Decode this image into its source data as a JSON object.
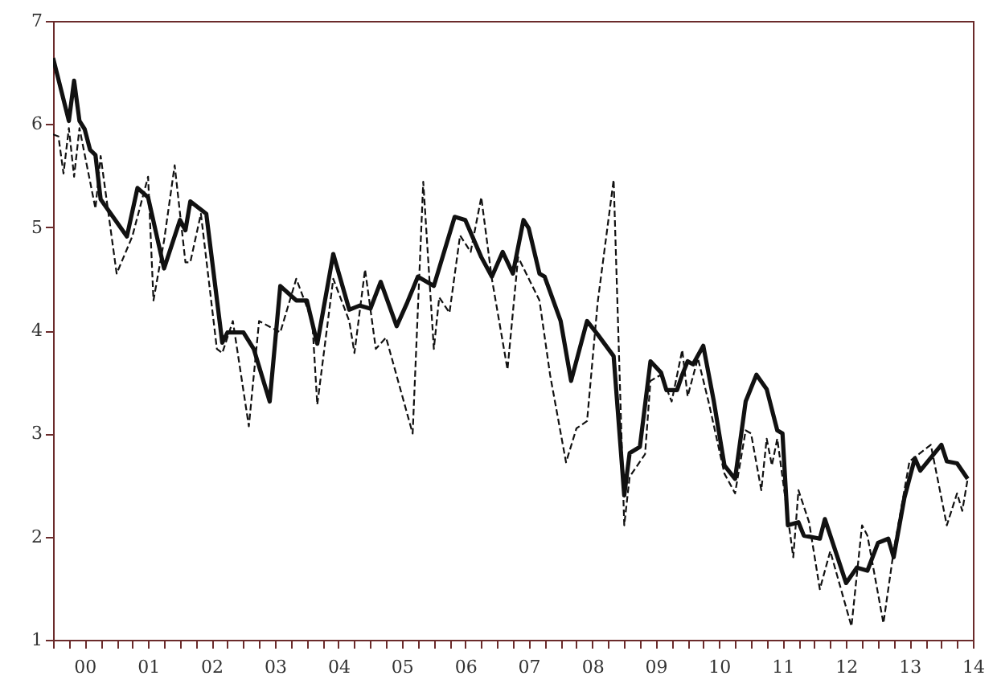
{
  "chart_data": {
    "type": "line",
    "xlim": [
      "2000-01",
      "2014-07"
    ],
    "ylim": [
      1,
      7
    ],
    "yticks": [
      1,
      2,
      3,
      4,
      5,
      6,
      7
    ],
    "marker": "none",
    "xticks": [
      {
        "value": "2000-01",
        "label": null
      },
      {
        "value": "2000-04",
        "label": null
      },
      {
        "value": "2000-07",
        "label": "00"
      },
      {
        "value": "2000-10",
        "label": null
      },
      {
        "value": "2001-01",
        "label": null
      },
      {
        "value": "2001-04",
        "label": null
      },
      {
        "value": "2001-07",
        "label": "01"
      },
      {
        "value": "2001-10",
        "label": null
      },
      {
        "value": "2002-01",
        "label": null
      },
      {
        "value": "2002-04",
        "label": null
      },
      {
        "value": "2002-07",
        "label": "02"
      },
      {
        "value": "2002-10",
        "label": null
      },
      {
        "value": "2003-01",
        "label": null
      },
      {
        "value": "2003-04",
        "label": null
      },
      {
        "value": "2003-07",
        "label": "03"
      },
      {
        "value": "2003-10",
        "label": null
      },
      {
        "value": "2004-01",
        "label": null
      },
      {
        "value": "2004-04",
        "label": null
      },
      {
        "value": "2004-07",
        "label": "04"
      },
      {
        "value": "2004-10",
        "label": null
      },
      {
        "value": "2005-01",
        "label": null
      },
      {
        "value": "2005-04",
        "label": null
      },
      {
        "value": "2005-07",
        "label": "05"
      },
      {
        "value": "2005-10",
        "label": null
      },
      {
        "value": "2006-01",
        "label": null
      },
      {
        "value": "2006-04",
        "label": null
      },
      {
        "value": "2006-07",
        "label": "06"
      },
      {
        "value": "2006-10",
        "label": null
      },
      {
        "value": "2007-01",
        "label": null
      },
      {
        "value": "2007-04",
        "label": null
      },
      {
        "value": "2007-07",
        "label": "07"
      },
      {
        "value": "2007-10",
        "label": null
      },
      {
        "value": "2008-01",
        "label": null
      },
      {
        "value": "2008-04",
        "label": null
      },
      {
        "value": "2008-07",
        "label": "08"
      },
      {
        "value": "2008-10",
        "label": null
      },
      {
        "value": "2009-01",
        "label": null
      },
      {
        "value": "2009-04",
        "label": null
      },
      {
        "value": "2009-07",
        "label": "09"
      },
      {
        "value": "2009-10",
        "label": null
      },
      {
        "value": "2010-01",
        "label": null
      },
      {
        "value": "2010-04",
        "label": null
      },
      {
        "value": "2010-07",
        "label": "10"
      },
      {
        "value": "2010-10",
        "label": null
      },
      {
        "value": "2011-01",
        "label": null
      },
      {
        "value": "2011-04",
        "label": null
      },
      {
        "value": "2011-07",
        "label": "11"
      },
      {
        "value": "2011-10",
        "label": null
      },
      {
        "value": "2012-01",
        "label": null
      },
      {
        "value": "2012-04",
        "label": null
      },
      {
        "value": "2012-07",
        "label": "12"
      },
      {
        "value": "2012-10",
        "label": null
      },
      {
        "value": "2013-01",
        "label": null
      },
      {
        "value": "2013-04",
        "label": null
      },
      {
        "value": "2013-07",
        "label": "13"
      },
      {
        "value": "2013-10",
        "label": null
      },
      {
        "value": "2014-01",
        "label": null
      },
      {
        "value": "2014-04",
        "label": null
      },
      {
        "value": "2014-07",
        "label": "14"
      }
    ],
    "series": [
      {
        "color": "#111111",
        "line_style": "solid",
        "x": [
          "2000-01",
          "2000-04",
          "2000-05",
          "2000-06",
          "2000-07",
          "2000-08",
          "2000-09",
          "2000-10",
          "2001-03",
          "2001-05",
          "2001-07",
          "2001-10",
          "2002-01",
          "2002-02",
          "2002-03",
          "2002-06",
          "2002-09",
          "2002-10",
          "2003-01",
          "2003-03",
          "2003-06",
          "2003-08",
          "2003-11",
          "2004-01",
          "2004-03",
          "2004-06",
          "2004-09",
          "2004-11",
          "2005-01",
          "2005-03",
          "2005-06",
          "2005-08",
          "2005-10",
          "2006-01",
          "2006-05",
          "2006-07",
          "2006-10",
          "2006-12",
          "2007-02",
          "2007-04",
          "2007-06",
          "2007-07",
          "2007-09",
          "2007-10",
          "2008-01",
          "2008-03",
          "2008-06",
          "2008-08",
          "2008-11",
          "2009-01",
          "2009-02",
          "2009-04",
          "2009-06",
          "2009-08",
          "2009-09",
          "2009-11",
          "2009-12",
          "2010-01",
          "2010-02",
          "2010-04",
          "2010-06",
          "2010-08",
          "2010-10",
          "2010-12",
          "2011-02",
          "2011-04",
          "2011-06",
          "2011-07",
          "2011-08",
          "2011-10",
          "2011-11",
          "2012-02",
          "2012-03",
          "2012-05",
          "2012-07",
          "2012-09",
          "2012-11",
          "2013-01",
          "2013-03",
          "2013-04",
          "2013-06",
          "2013-08",
          "2013-09",
          "2014-01",
          "2014-02",
          "2014-04",
          "2014-06"
        ],
        "values": [
          6.64,
          6.03,
          6.42,
          6.03,
          5.95,
          5.75,
          5.7,
          5.27,
          4.91,
          5.38,
          5.29,
          4.6,
          5.07,
          4.97,
          5.25,
          5.13,
          3.88,
          3.98,
          3.98,
          3.82,
          3.31,
          4.43,
          4.29,
          4.29,
          3.87,
          4.74,
          4.2,
          4.24,
          4.21,
          4.47,
          4.04,
          4.27,
          4.52,
          4.43,
          5.1,
          5.07,
          4.71,
          4.52,
          4.76,
          4.55,
          5.07,
          4.99,
          4.55,
          4.52,
          4.09,
          3.51,
          4.09,
          3.96,
          3.75,
          2.4,
          2.81,
          2.87,
          3.7,
          3.59,
          3.42,
          3.42,
          3.57,
          3.7,
          3.67,
          3.85,
          3.31,
          2.69,
          2.56,
          3.31,
          3.57,
          3.43,
          3.03,
          3.0,
          2.11,
          2.14,
          2.01,
          1.98,
          2.17,
          1.86,
          1.55,
          1.7,
          1.67,
          1.94,
          1.98,
          1.8,
          2.37,
          2.76,
          2.64,
          2.89,
          2.73,
          2.71,
          2.56
        ]
      },
      {
        "color": "#111111",
        "line_style": "dashed",
        "x": [
          "2000-01",
          "2000-02",
          "2000-03",
          "2000-04",
          "2000-05",
          "2000-06",
          "2000-09",
          "2000-10",
          "2001-01",
          "2001-04",
          "2001-07",
          "2001-08",
          "2001-10",
          "2001-12",
          "2002-02",
          "2002-03",
          "2002-05",
          "2002-08",
          "2002-09",
          "2002-11",
          "2003-02",
          "2003-04",
          "2003-08",
          "2003-11",
          "2004-02",
          "2004-03",
          "2004-06",
          "2004-09",
          "2004-10",
          "2004-12",
          "2005-02",
          "2005-04",
          "2005-09",
          "2005-11",
          "2006-01",
          "2006-02",
          "2006-04",
          "2006-06",
          "2006-08",
          "2006-10",
          "2006-12",
          "2007-03",
          "2007-05",
          "2007-09",
          "2007-11",
          "2008-02",
          "2008-04",
          "2008-06",
          "2008-08",
          "2008-11",
          "2009-01",
          "2009-02",
          "2009-05",
          "2009-06",
          "2009-08",
          "2009-10",
          "2009-12",
          "2010-01",
          "2010-03",
          "2010-05",
          "2010-08",
          "2010-10",
          "2010-12",
          "2011-01",
          "2011-03",
          "2011-04",
          "2011-05",
          "2011-06",
          "2011-09",
          "2011-10",
          "2011-12",
          "2012-02",
          "2012-04",
          "2012-08",
          "2012-10",
          "2012-11",
          "2013-02",
          "2013-04",
          "2013-07",
          "2013-11",
          "2014-02",
          "2014-04",
          "2014-05",
          "2014-06"
        ],
        "values": [
          5.9,
          5.88,
          5.52,
          5.96,
          5.49,
          5.96,
          5.18,
          5.69,
          4.55,
          4.91,
          5.49,
          4.29,
          4.87,
          5.6,
          4.66,
          4.66,
          5.13,
          3.82,
          3.78,
          4.09,
          3.07,
          4.09,
          3.98,
          4.5,
          4.09,
          3.28,
          4.5,
          4.09,
          3.78,
          4.59,
          3.82,
          3.93,
          3.0,
          5.44,
          3.82,
          4.32,
          4.17,
          4.92,
          4.76,
          5.29,
          4.5,
          3.62,
          4.71,
          4.29,
          3.57,
          2.72,
          3.05,
          3.12,
          4.27,
          5.46,
          2.11,
          2.58,
          2.8,
          3.51,
          3.57,
          3.31,
          3.81,
          3.36,
          3.73,
          3.31,
          2.61,
          2.42,
          3.03,
          3.0,
          2.45,
          2.95,
          2.69,
          2.95,
          1.8,
          2.45,
          2.14,
          1.49,
          1.86,
          1.13,
          2.11,
          2.01,
          1.16,
          1.86,
          2.73,
          2.89,
          2.11,
          2.42,
          2.25,
          2.56
        ]
      }
    ]
  }
}
